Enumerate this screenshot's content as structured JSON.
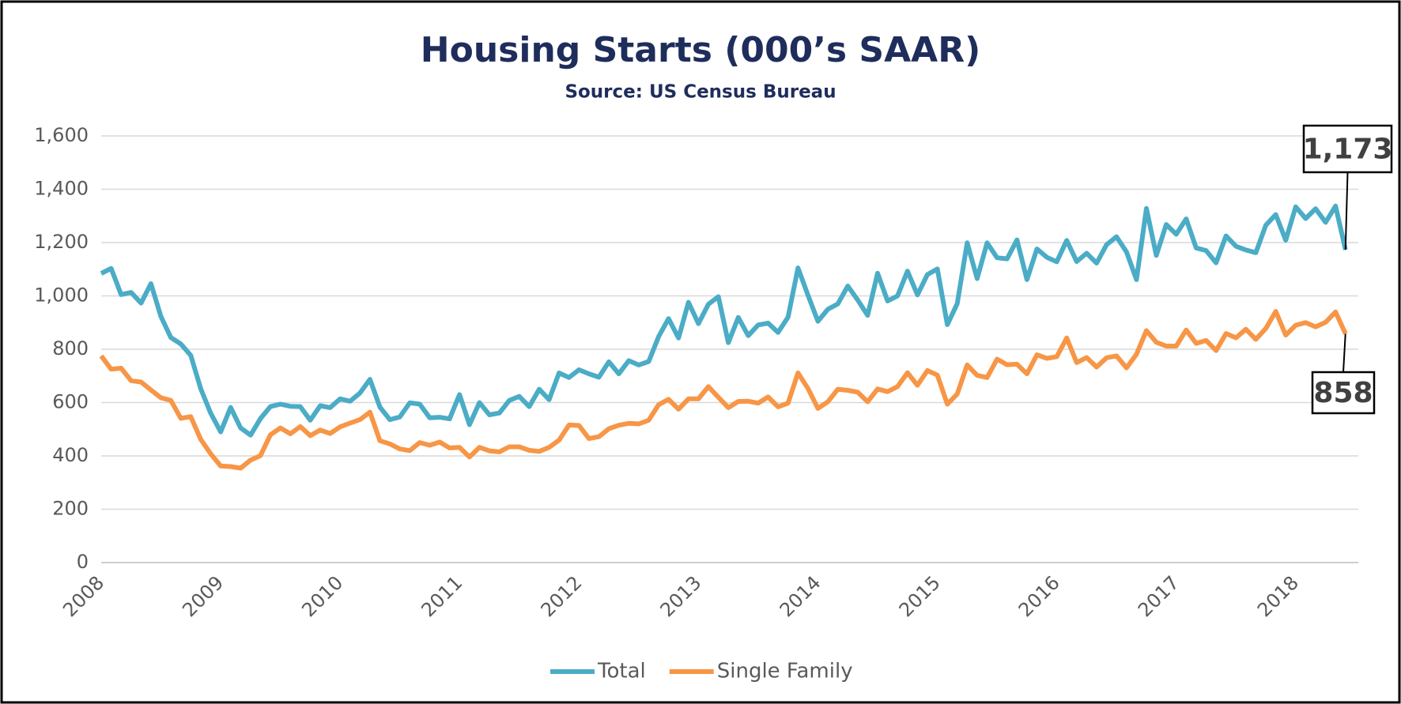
{
  "chart_data": {
    "type": "line",
    "title": "Housing Starts (000’s SAAR)",
    "subtitle": "Source: US Census Bureau",
    "categories": [
      "2008",
      null,
      null,
      null,
      null,
      null,
      null,
      null,
      null,
      null,
      null,
      null,
      "2009",
      null,
      null,
      null,
      null,
      null,
      null,
      null,
      null,
      null,
      null,
      null,
      "2010",
      null,
      null,
      null,
      null,
      null,
      null,
      null,
      null,
      null,
      null,
      null,
      "2011",
      null,
      null,
      null,
      null,
      null,
      null,
      null,
      null,
      null,
      null,
      null,
      "2012",
      null,
      null,
      null,
      null,
      null,
      null,
      null,
      null,
      null,
      null,
      null,
      "2013",
      null,
      null,
      null,
      null,
      null,
      null,
      null,
      null,
      null,
      null,
      null,
      "2014",
      null,
      null,
      null,
      null,
      null,
      null,
      null,
      null,
      null,
      null,
      null,
      "2015",
      null,
      null,
      null,
      null,
      null,
      null,
      null,
      null,
      null,
      null,
      null,
      "2016",
      null,
      null,
      null,
      null,
      null,
      null,
      null,
      null,
      null,
      null,
      null,
      "2017",
      null,
      null,
      null,
      null,
      null,
      null,
      null,
      null,
      null,
      null,
      null,
      "2018",
      null,
      null,
      null,
      null,
      null
    ],
    "series": [
      {
        "name": "Total",
        "color": "#4bacc6",
        "values": [
          1084,
          1103,
          1005,
          1013,
          973,
          1046,
          923,
          844,
          820,
          777,
          652,
          560,
          490,
          582,
          505,
          478,
          540,
          585,
          594,
          586,
          585,
          534,
          588,
          581,
          614,
          605,
          636,
          687,
          583,
          536,
          546,
          599,
          594,
          543,
          545,
          539,
          630,
          517,
          600,
          554,
          561,
          608,
          623,
          585,
          650,
          611,
          711,
          694,
          723,
          708,
          695,
          753,
          708,
          757,
          741,
          754,
          847,
          915,
          842,
          976,
          896,
          969,
          997,
          825,
          919,
          851,
          891,
          898,
          863,
          920,
          1105,
          1003,
          905,
          950,
          970,
          1037,
          985,
          927,
          1085,
          981,
          1000,
          1093,
          1004,
          1080,
          1101,
          892,
          971,
          1199,
          1065,
          1199,
          1143,
          1139,
          1210,
          1061,
          1176,
          1145,
          1128,
          1208,
          1129,
          1160,
          1123,
          1192,
          1222,
          1165,
          1061,
          1328,
          1152,
          1268,
          1231,
          1289,
          1180,
          1170,
          1124,
          1225,
          1186,
          1172,
          1162,
          1265,
          1305,
          1209,
          1334,
          1290,
          1327,
          1276,
          1337,
          1173
        ],
        "value_labels": [
          null,
          null,
          null,
          null,
          null,
          null,
          null,
          null,
          null,
          null,
          null,
          null,
          null,
          null,
          null,
          null,
          null,
          null,
          null,
          null,
          null,
          null,
          null,
          null,
          null,
          null,
          null,
          null,
          null,
          null,
          null,
          null,
          null,
          null,
          null,
          null,
          null,
          null,
          null,
          null,
          null,
          null,
          null,
          null,
          null,
          null,
          null,
          null,
          null,
          null,
          null,
          null,
          null,
          null,
          null,
          null,
          null,
          null,
          null,
          null,
          null,
          null,
          null,
          null,
          null,
          null,
          null,
          null,
          null,
          null,
          null,
          null,
          null,
          null,
          null,
          null,
          null,
          null,
          null,
          null,
          null,
          null,
          null,
          null,
          null,
          null,
          null,
          null,
          null,
          null,
          null,
          null,
          null,
          null,
          null,
          null,
          null,
          null,
          null,
          null,
          null,
          null,
          null,
          null,
          null,
          null,
          null,
          null,
          null,
          null,
          null,
          null,
          null,
          null,
          null,
          null,
          null,
          null,
          null,
          null,
          null,
          null,
          null,
          null,
          null,
          "1,173"
        ]
      },
      {
        "name": "Single Family",
        "color": "#f79646",
        "values": [
          775,
          725,
          729,
          682,
          677,
          647,
          618,
          608,
          541,
          547,
          462,
          408,
          362,
          360,
          354,
          384,
          401,
          479,
          505,
          483,
          510,
          476,
          497,
          484,
          509,
          523,
          536,
          564,
          457,
          445,
          426,
          420,
          450,
          440,
          452,
          430,
          432,
          396,
          432,
          419,
          415,
          434,
          434,
          421,
          417,
          432,
          459,
          516,
          514,
          465,
          472,
          502,
          515,
          522,
          520,
          534,
          592,
          612,
          575,
          614,
          614,
          660,
          620,
          581,
          604,
          605,
          598,
          621,
          584,
          598,
          711,
          653,
          578,
          603,
          650,
          646,
          639,
          603,
          651,
          641,
          660,
          712,
          665,
          720,
          703,
          594,
          632,
          741,
          702,
          694,
          763,
          742,
          744,
          708,
          779,
          766,
          772,
          842,
          750,
          769,
          733,
          768,
          775,
          730,
          781,
          870,
          826,
          812,
          812,
          872,
          822,
          833,
          795,
          859,
          843,
          875,
          837,
          878,
          942,
          853,
          890,
          900,
          884,
          901,
          940,
          858
        ]
      }
    ],
    "ylim": [
      0,
      1600
    ],
    "yticks": [
      0,
      200,
      400,
      600,
      800,
      {
        "value": 1000,
        "label": "1,000"
      },
      {
        "value": 1200,
        "label": "1,200"
      },
      {
        "value": 1400,
        "label": "1,400"
      },
      {
        "value": 1600,
        "label": "1,600"
      }
    ],
    "grid": true,
    "legend": "bottom"
  }
}
